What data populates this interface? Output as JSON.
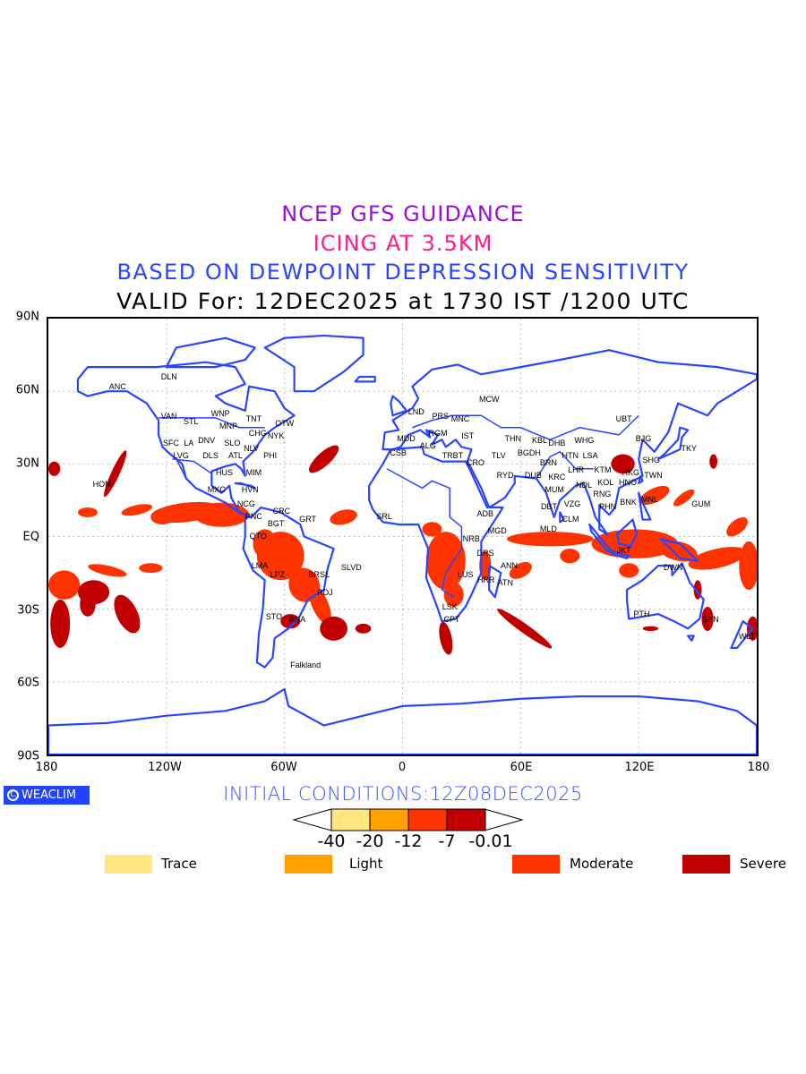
{
  "titles": {
    "line1": "NCEP GFS GUIDANCE",
    "line2": "ICING AT 3.5KM",
    "line3": "BASED ON DEWPOINT DEPRESSION SENSITIVITY",
    "line4": "VALID For: 12DEC2025 at 1730 IST /1200 UTC"
  },
  "axes": {
    "y_ticks": [
      "90N",
      "60N",
      "30N",
      "EQ",
      "30S",
      "60S",
      "90S"
    ],
    "x_ticks": [
      "180",
      "120W",
      "60W",
      "0",
      "60E",
      "120E",
      "180"
    ]
  },
  "branding": {
    "logo_text": "WEACLIM",
    "copyright_symbol": "C"
  },
  "initial_conditions": "INITIAL CONDITIONS:12Z08DEC2025",
  "colorbar": {
    "labels": [
      "-40",
      "-20",
      "-12",
      "-7",
      "-0.01"
    ],
    "colors": [
      "#ffe680",
      "#ff9f00",
      "#ff3300",
      "#c00000"
    ]
  },
  "legend": [
    {
      "label": "Trace",
      "color": "#ffe680"
    },
    {
      "label": "Light",
      "color": "#ff9f00"
    },
    {
      "label": "Moderate",
      "color": "#ff3300"
    },
    {
      "label": "Severe",
      "color": "#c00000"
    }
  ],
  "map": {
    "coast_color": "#2a45ff",
    "cities": [
      {
        "name": "ANC",
        "lon": -145,
        "lat": 62
      },
      {
        "name": "DLN",
        "lon": -119,
        "lat": 66
      },
      {
        "name": "VAN",
        "lon": -119,
        "lat": 50
      },
      {
        "name": "STL",
        "lon": -117,
        "lat": 48
      },
      {
        "name": "WNP",
        "lon": -93,
        "lat": 51
      },
      {
        "name": "MNP",
        "lon": -89,
        "lat": 46
      },
      {
        "name": "CHG",
        "lon": -85,
        "lat": 43
      },
      {
        "name": "TNT",
        "lon": -76,
        "lat": 45
      },
      {
        "name": "OTW",
        "lon": -72,
        "lat": 47
      },
      {
        "name": "NYK",
        "lon": -70,
        "lat": 42
      },
      {
        "name": "DNV",
        "lon": -100,
        "lat": 40
      },
      {
        "name": "SFC",
        "lon": -118,
        "lat": 39
      },
      {
        "name": "LVG",
        "lon": -113,
        "lat": 38
      },
      {
        "name": "LA",
        "lon": -115,
        "lat": 35
      },
      {
        "name": "SLO",
        "lon": -87,
        "lat": 39
      },
      {
        "name": "NLV",
        "lon": -82,
        "lat": 37
      },
      {
        "name": "ATL",
        "lon": -81,
        "lat": 34
      },
      {
        "name": "PHI",
        "lon": -76,
        "lat": 34
      },
      {
        "name": "DLS",
        "lon": -93,
        "lat": 34
      },
      {
        "name": "HUS",
        "lon": -91,
        "lat": 31
      },
      {
        "name": "MIM",
        "lon": -76,
        "lat": 27
      },
      {
        "name": "HVN",
        "lon": -78,
        "lat": 24
      },
      {
        "name": "HON",
        "lon": -153,
        "lat": 22
      },
      {
        "name": "MXC",
        "lon": -95,
        "lat": 20
      },
      {
        "name": "NCG",
        "lon": -80,
        "lat": 14
      },
      {
        "name": "CRC",
        "lon": -62,
        "lat": 11
      },
      {
        "name": "PNC",
        "lon": -71,
        "lat": 9
      },
      {
        "name": "GRT",
        "lon": -54,
        "lat": 8
      },
      {
        "name": "BGT",
        "lon": -70,
        "lat": 6
      },
      {
        "name": "QTO",
        "lon": -74,
        "lat": 1
      },
      {
        "name": "LMA",
        "lon": -73,
        "lat": -11
      },
      {
        "name": "LPZ",
        "lon": -64,
        "lat": -15
      },
      {
        "name": "BRSL",
        "lon": -43,
        "lat": -15
      },
      {
        "name": "SLVD",
        "lon": -33,
        "lat": -12
      },
      {
        "name": "RDJ",
        "lon": -40,
        "lat": -22
      },
      {
        "name": "STO",
        "lon": -66,
        "lat": -32
      },
      {
        "name": "BNA",
        "lon": -54,
        "lat": -33
      },
      {
        "name": "Falkland",
        "lon": -50,
        "lat": -52
      },
      {
        "name": "LND",
        "lon": 6,
        "lat": 52
      },
      {
        "name": "PRS",
        "lon": 8,
        "lat": 50
      },
      {
        "name": "MNC",
        "lon": 17,
        "lat": 49
      },
      {
        "name": "MDD",
        "lon": 1,
        "lat": 41
      },
      {
        "name": "ALG",
        "lon": 7,
        "lat": 38
      },
      {
        "name": "CSB",
        "lon": -3,
        "lat": 35
      },
      {
        "name": "RGM",
        "lon": 17,
        "lat": 43
      },
      {
        "name": "IST",
        "lon": 32,
        "lat": 42
      },
      {
        "name": "TRBT",
        "lon": 18,
        "lat": 34
      },
      {
        "name": "MCW",
        "lon": 43,
        "lat": 57
      },
      {
        "name": "CRO",
        "lon": 36,
        "lat": 31
      },
      {
        "name": "TLV",
        "lon": 39,
        "lat": 34
      },
      {
        "name": "BGDH",
        "lon": 49,
        "lat": 35
      },
      {
        "name": "THN",
        "lon": 55,
        "lat": 37
      },
      {
        "name": "RYD",
        "lon": 51,
        "lat": 26
      },
      {
        "name": "DUB",
        "lon": 60,
        "lat": 26
      },
      {
        "name": "KRC",
        "lon": 72,
        "lat": 25
      },
      {
        "name": "DHB",
        "lon": 72,
        "lat": 39
      },
      {
        "name": "WHG",
        "lon": 79,
        "lat": 40
      },
      {
        "name": "HTN",
        "lon": 84,
        "lat": 38
      },
      {
        "name": "KBL",
        "lon": 73,
        "lat": 36
      },
      {
        "name": "BRN",
        "lon": 78,
        "lat": 35
      },
      {
        "name": "LHR",
        "lon": 77,
        "lat": 32
      },
      {
        "name": "NDL",
        "lon": 81,
        "lat": 30
      },
      {
        "name": "KTM",
        "lon": 90,
        "lat": 28
      },
      {
        "name": "LSA",
        "lon": 94,
        "lat": 30
      },
      {
        "name": "KOL",
        "lon": 92,
        "lat": 23
      },
      {
        "name": "MUM",
        "lon": 76,
        "lat": 20
      },
      {
        "name": "VZG",
        "lon": 85,
        "lat": 18
      },
      {
        "name": "DBT",
        "lon": 78,
        "lat": 13
      },
      {
        "name": "CLM",
        "lon": 84,
        "lat": 8
      },
      {
        "name": "MLD",
        "lon": 78,
        "lat": 4
      },
      {
        "name": "UBT",
        "lon": 111,
        "lat": 49
      },
      {
        "name": "BJG",
        "lon": 121,
        "lat": 41
      },
      {
        "name": "TKY",
        "lon": 144,
        "lat": 37
      },
      {
        "name": "SHG",
        "lon": 125,
        "lat": 32
      },
      {
        "name": "TWN",
        "lon": 126,
        "lat": 26
      },
      {
        "name": "HNO",
        "lon": 113,
        "lat": 23
      },
      {
        "name": "HKG",
        "lon": 120,
        "lat": 23
      },
      {
        "name": "RNG",
        "lon": 100,
        "lat": 18
      },
      {
        "name": "BNK",
        "lon": 103,
        "lat": 15
      },
      {
        "name": "PHN",
        "lon": 108,
        "lat": 13
      },
      {
        "name": "MNL",
        "lon": 124,
        "lat": 16
      },
      {
        "name": "GUM",
        "lon": 150,
        "lat": 14
      },
      {
        "name": "JKT",
        "lon": 111,
        "lat": -5
      },
      {
        "name": "DWN",
        "lon": 136,
        "lat": -12
      },
      {
        "name": "PTH",
        "lon": 120,
        "lat": -31
      },
      {
        "name": "SYN",
        "lon": 155,
        "lat": -33
      },
      {
        "name": "WLT",
        "lon": 178,
        "lat": -40
      },
      {
        "name": "SRL",
        "lon": -10,
        "lat": 9
      },
      {
        "name": "ADB",
        "lon": 41,
        "lat": 10
      },
      {
        "name": "MGD",
        "lon": 47,
        "lat": 3
      },
      {
        "name": "NRB",
        "lon": 39,
        "lat": 0
      },
      {
        "name": "DRS",
        "lon": 41,
        "lat": -6
      },
      {
        "name": "ANN",
        "lon": 53,
        "lat": -11
      },
      {
        "name": "ATN",
        "lon": 51,
        "lat": -18
      },
      {
        "name": "LUS",
        "lon": 31,
        "lat": -15
      },
      {
        "name": "HRR",
        "lon": 36,
        "lat": -17
      },
      {
        "name": "LSK",
        "lon": 23,
        "lat": -28
      },
      {
        "name": "CPT",
        "lon": 24,
        "lat": -33
      }
    ]
  }
}
